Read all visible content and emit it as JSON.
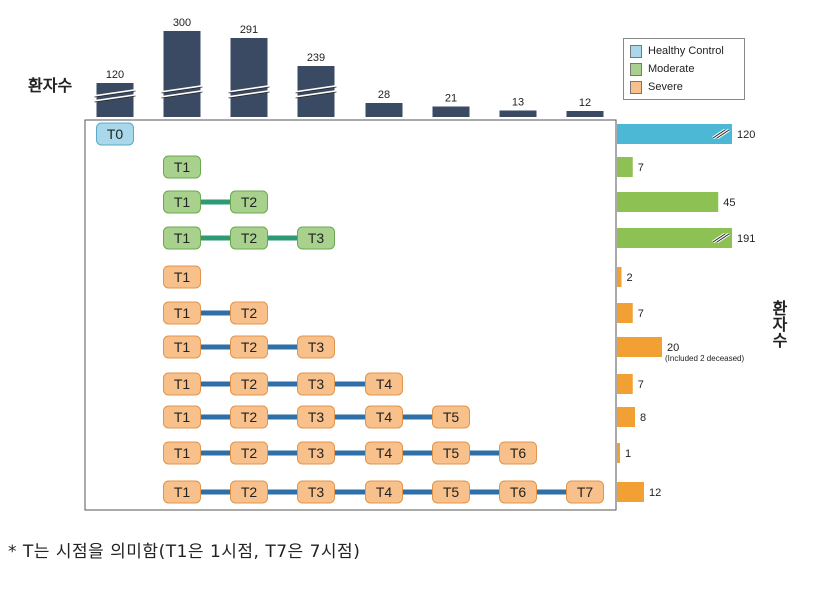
{
  "chart_data": [
    {
      "type": "bar",
      "ylabel": "환자수",
      "categories": [
        "T0",
        "T1",
        "T2",
        "T3",
        "T4",
        "T5",
        "T6",
        "T7"
      ],
      "values": [
        120,
        300,
        291,
        239,
        28,
        21,
        13,
        12
      ],
      "labels": [
        "120",
        "300",
        "291",
        "239",
        "28",
        "21",
        "13",
        "12"
      ],
      "axis_break": [
        true,
        true,
        true,
        true,
        false,
        false,
        false,
        false
      ],
      "color": "#3a4a63"
    },
    {
      "type": "bar",
      "orientation": "horizontal",
      "ylabel": "환자수",
      "rows": [
        {
          "group": "Healthy Control",
          "timepoints": [
            "T0"
          ],
          "value": 120,
          "label": "120",
          "axis_break": true
        },
        {
          "group": "Moderate",
          "timepoints": [
            "T1"
          ],
          "value": 7,
          "label": "7",
          "axis_break": false
        },
        {
          "group": "Moderate",
          "timepoints": [
            "T1",
            "T2"
          ],
          "value": 45,
          "label": "45",
          "axis_break": false
        },
        {
          "group": "Moderate",
          "timepoints": [
            "T1",
            "T2",
            "T3"
          ],
          "value": 191,
          "label": "191",
          "axis_break": true
        },
        {
          "group": "Severe",
          "timepoints": [
            "T1"
          ],
          "value": 2,
          "label": "2",
          "axis_break": false
        },
        {
          "group": "Severe",
          "timepoints": [
            "T1",
            "T2"
          ],
          "value": 7,
          "label": "7",
          "axis_break": false
        },
        {
          "group": "Severe",
          "timepoints": [
            "T1",
            "T2",
            "T3"
          ],
          "value": 20,
          "label": "20",
          "note": "(Included 2 deceased)",
          "axis_break": false
        },
        {
          "group": "Severe",
          "timepoints": [
            "T1",
            "T2",
            "T3",
            "T4"
          ],
          "value": 7,
          "label": "7",
          "axis_break": false
        },
        {
          "group": "Severe",
          "timepoints": [
            "T1",
            "T2",
            "T3",
            "T4",
            "T5"
          ],
          "value": 8,
          "label": "8",
          "axis_break": false
        },
        {
          "group": "Severe",
          "timepoints": [
            "T1",
            "T2",
            "T3",
            "T4",
            "T5",
            "T6"
          ],
          "value": 1,
          "label": "1",
          "axis_break": false
        },
        {
          "group": "Severe",
          "timepoints": [
            "T1",
            "T2",
            "T3",
            "T4",
            "T5",
            "T6",
            "T7"
          ],
          "value": 12,
          "label": "12",
          "axis_break": false
        }
      ],
      "legend": [
        {
          "name": "Healthy Control",
          "color": "#4db8d6"
        },
        {
          "name": "Moderate",
          "color": "#8dc153"
        },
        {
          "name": "Severe",
          "color": "#f2a033"
        }
      ],
      "legend_placement": "top-right"
    }
  ],
  "colors": {
    "healthy_fill": "#a8d8ea",
    "healthy_stroke": "#5aa9c8",
    "healthy_bar": "#4db8d6",
    "moderate_fill": "#a9d18e",
    "moderate_stroke": "#6aa84f",
    "moderate_bar": "#8dc153",
    "severe_fill": "#f8c08a",
    "severe_stroke": "#e2954a",
    "severe_bar": "#f2a033",
    "moderate_line": "#2e9a74",
    "severe_line": "#2e6fa8",
    "top_bar": "#3a4a63"
  },
  "labels": {
    "left_axis": "환자수",
    "right_axis": "환자수",
    "footnote": "* T는 시점을 의미함(T1은 1시점, T7은 7시점)"
  }
}
